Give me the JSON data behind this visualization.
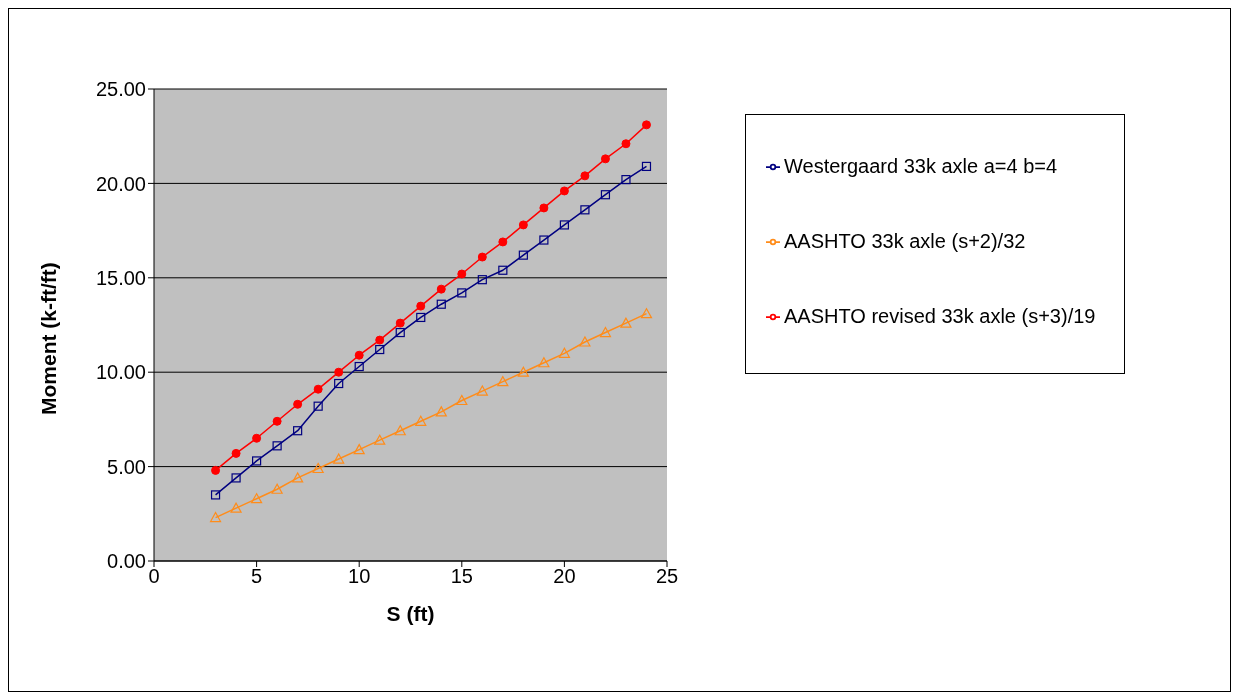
{
  "chart_data": {
    "type": "line",
    "xlabel": "S (ft)",
    "ylabel": "Moment (k-ft/ft)",
    "x": [
      3,
      4,
      5,
      6,
      7,
      8,
      9,
      10,
      11,
      12,
      13,
      14,
      15,
      16,
      17,
      18,
      19,
      20,
      21,
      22,
      23,
      24
    ],
    "series": [
      {
        "name": "Westergaard 33k axle a=4 b=4",
        "color": "#000080",
        "marker": "square",
        "values": [
          3.5,
          4.4,
          5.3,
          6.1,
          6.9,
          8.2,
          9.4,
          10.3,
          11.2,
          12.1,
          12.9,
          13.6,
          14.2,
          14.9,
          15.4,
          16.2,
          17.0,
          17.8,
          18.6,
          19.4,
          20.2,
          20.9
        ]
      },
      {
        "name": "AASHTO 33k axle (s+2)/32",
        "color": "#ff8c1a",
        "marker": "triangle",
        "values": [
          2.3,
          2.8,
          3.3,
          3.8,
          4.4,
          4.9,
          5.4,
          5.9,
          6.4,
          6.9,
          7.4,
          7.9,
          8.5,
          9.0,
          9.5,
          10.0,
          10.5,
          11.0,
          11.6,
          12.1,
          12.6,
          13.1
        ]
      },
      {
        "name": "AASHTO revised 33k axle (s+3)/19",
        "color": "#ff0000",
        "marker": "circle",
        "values": [
          4.8,
          5.7,
          6.5,
          7.4,
          8.3,
          9.1,
          10.0,
          10.9,
          11.7,
          12.6,
          13.5,
          14.4,
          15.2,
          16.1,
          16.9,
          17.8,
          18.7,
          19.6,
          20.4,
          21.3,
          22.1,
          23.1
        ]
      }
    ],
    "xlim": [
      0,
      25
    ],
    "xticks": [
      0,
      5,
      10,
      15,
      20,
      25
    ],
    "ylim": [
      0,
      25
    ],
    "yticks": [
      {
        "value": 0,
        "label": "0.00"
      },
      {
        "value": 5,
        "label": "5.00"
      },
      {
        "value": 10,
        "label": "10.00"
      },
      {
        "value": 15,
        "label": "15.00"
      },
      {
        "value": 20,
        "label": "20.00"
      },
      {
        "value": 25,
        "label": "25.00"
      }
    ],
    "grid": "y",
    "legend": "right",
    "line_style": "solid"
  }
}
